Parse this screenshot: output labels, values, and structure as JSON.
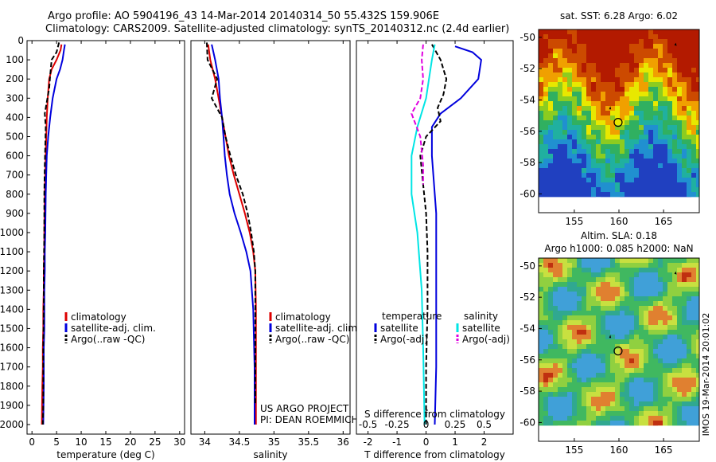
{
  "header": {
    "line1": "Argo profile: AO 5904196_43 14-Mar-2014 20140314_50 55.432S 159.906E",
    "line2": "Climatology: CARS2009. Satellite-adjusted climatology: synTS_20140312.nc (2.4d earlier)"
  },
  "colors": {
    "climatology": "#dd0000",
    "satellite": "#0000dd",
    "argo": "#000000",
    "salinity_sat": "#00e5e5",
    "salinity_argo": "#e000e0"
  },
  "chart_data": [
    {
      "type": "line",
      "id": "temperature",
      "xlabel": "temperature (deg C)",
      "ylabel": "",
      "xlim": [
        -1,
        31
      ],
      "ylim": [
        2050,
        0
      ],
      "xticks": [
        0,
        5,
        10,
        15,
        20,
        25,
        30
      ],
      "yticks": [
        0,
        100,
        200,
        300,
        400,
        500,
        600,
        700,
        800,
        900,
        1000,
        1100,
        1200,
        1300,
        1400,
        1500,
        1600,
        1700,
        1800,
        1900,
        2000
      ],
      "legend": [
        "climatology",
        "satellite-adj. clim.",
        "Argo(..raw -QC)"
      ],
      "series": [
        {
          "name": "climatology",
          "color": "#dd0000",
          "style": "solid",
          "x": [
            6.0,
            5.8,
            5.0,
            4.0,
            3.5,
            3.2,
            3.0,
            2.9,
            2.8,
            2.7,
            2.6,
            2.5,
            2.5,
            2.4,
            2.4,
            2.3,
            2.3,
            2.2,
            2.2,
            2.1,
            2.0
          ],
          "y": [
            20,
            50,
            100,
            150,
            200,
            300,
            400,
            500,
            600,
            700,
            800,
            1000,
            1100,
            1200,
            1300,
            1400,
            1500,
            1600,
            1700,
            1800,
            2000
          ]
        },
        {
          "name": "satellite-adj. clim.",
          "color": "#0000dd",
          "style": "solid",
          "x": [
            6.7,
            6.5,
            6.2,
            5.7,
            5.0,
            4.2,
            3.7,
            3.3,
            3.0,
            2.9,
            2.8,
            2.7,
            2.6,
            2.6,
            2.5,
            2.5,
            2.5,
            2.4,
            2.4,
            2.4,
            2.3
          ],
          "y": [
            20,
            50,
            100,
            150,
            200,
            300,
            400,
            500,
            600,
            700,
            800,
            1000,
            1100,
            1200,
            1300,
            1400,
            1500,
            1600,
            1700,
            1800,
            2000
          ]
        },
        {
          "name": "Argo(..raw -QC)",
          "color": "#000000",
          "style": "dashed",
          "x": [
            5.5,
            5.0,
            4.0,
            3.7,
            3.5,
            3.0,
            2.6,
            2.8,
            2.7,
            2.6,
            2.5,
            2.5,
            2.4,
            2.4,
            2.3,
            2.3,
            2.3,
            2.2
          ],
          "y": [
            10,
            60,
            100,
            180,
            250,
            320,
            380,
            450,
            550,
            650,
            800,
            1000,
            1200,
            1400,
            1600,
            1800,
            1900,
            2000
          ]
        }
      ]
    },
    {
      "type": "line",
      "id": "salinity",
      "xlabel": "salinity",
      "ylabel": "",
      "xlim": [
        33.8,
        36.1
      ],
      "ylim": [
        2050,
        0
      ],
      "xticks": [
        34,
        34.5,
        35,
        35.5,
        36
      ],
      "legend": [
        "climatology",
        "satellite-adj. clim.",
        "Argo(..raw -QC)"
      ],
      "annotation": [
        "US ARGO PROJECT",
        "PI: DEAN ROEMMICH"
      ],
      "series": [
        {
          "name": "climatology",
          "color": "#dd0000",
          "style": "solid",
          "x": [
            34.05,
            34.08,
            34.15,
            34.2,
            34.25,
            34.3,
            34.35,
            34.42,
            34.5,
            34.58,
            34.65,
            34.7,
            34.73,
            34.74,
            34.74,
            34.74
          ],
          "y": [
            20,
            100,
            200,
            300,
            400,
            500,
            600,
            700,
            800,
            900,
            1000,
            1100,
            1200,
            1400,
            1700,
            2000
          ]
        },
        {
          "name": "satellite-adj. clim.",
          "color": "#0000dd",
          "style": "solid",
          "x": [
            34.1,
            34.15,
            34.2,
            34.22,
            34.25,
            34.27,
            34.29,
            34.32,
            34.36,
            34.43,
            34.52,
            34.6,
            34.66,
            34.7,
            34.72,
            34.72
          ],
          "y": [
            20,
            100,
            200,
            300,
            400,
            500,
            600,
            700,
            800,
            900,
            1000,
            1100,
            1200,
            1400,
            1700,
            2000
          ]
        },
        {
          "name": "Argo(..raw -QC)",
          "color": "#000000",
          "style": "dashed",
          "x": [
            34.03,
            34.04,
            34.18,
            34.1,
            34.25,
            34.3,
            34.37,
            34.45,
            34.55,
            34.62,
            34.67,
            34.71,
            34.73,
            34.73,
            34.73
          ],
          "y": [
            10,
            100,
            200,
            300,
            400,
            500,
            600,
            700,
            800,
            900,
            1000,
            1100,
            1200,
            1500,
            1900
          ]
        }
      ]
    },
    {
      "type": "line",
      "id": "difference",
      "xlabel": "T difference from climatology",
      "xlabel_top": "S difference from climatology",
      "xlim": [
        -2.4,
        3.0
      ],
      "ylim": [
        2050,
        0
      ],
      "xticks": [
        -2,
        -1,
        0,
        1,
        2
      ],
      "xticks_top": [
        "-0.5",
        "-0.25",
        "0",
        "0.25",
        "0.5"
      ],
      "legend_left_title": "temperature",
      "legend_right_title": "salinity",
      "legend_left": [
        "satellite",
        "Argo(-adj)"
      ],
      "legend_right": [
        "satellite",
        "Argo(-adj)"
      ],
      "series": [
        {
          "name": "T satellite",
          "color": "#0000dd",
          "style": "solid",
          "x": [
            1.0,
            1.6,
            1.9,
            1.8,
            1.2,
            0.5,
            0.2,
            0.2,
            0.25,
            0.3,
            0.35,
            0.35,
            0.35,
            0.35,
            0.3
          ],
          "y": [
            30,
            60,
            100,
            200,
            300,
            380,
            450,
            600,
            700,
            800,
            900,
            1100,
            1400,
            1700,
            2000
          ]
        },
        {
          "name": "T Argo(-adj)",
          "color": "#000000",
          "style": "dashed",
          "x": [
            0.2,
            0.5,
            0.7,
            0.6,
            0.4,
            0.5,
            0.0,
            -0.2,
            -0.1,
            0.0,
            0.05,
            0.05,
            0.0,
            0.0
          ],
          "y": [
            20,
            100,
            200,
            280,
            350,
            420,
            500,
            600,
            750,
            900,
            1100,
            1400,
            1700,
            2000
          ]
        },
        {
          "name": "S satellite",
          "color": "#00e5e5",
          "style": "solid",
          "x": [
            0.3,
            0.2,
            0.1,
            0.0,
            -0.3,
            -0.5,
            -0.5,
            -0.3,
            -0.15,
            -0.1,
            -0.05
          ],
          "y": [
            20,
            100,
            200,
            300,
            450,
            600,
            800,
            1000,
            1300,
            1600,
            2000
          ]
        },
        {
          "name": "S Argo(-adj)",
          "color": "#e000e0",
          "style": "dashed",
          "x": [
            -0.1,
            -0.15,
            -0.1,
            -0.2,
            -0.5,
            -0.2,
            -0.1,
            -0.1
          ],
          "y": [
            20,
            100,
            200,
            300,
            380,
            500,
            650,
            750
          ]
        }
      ]
    },
    {
      "type": "heatmap",
      "id": "sst_map",
      "title": "sat. SST: 6.28 Argo: 6.02",
      "xticks": [
        "155",
        "160",
        "165"
      ],
      "yticks": [
        "-50",
        "-52",
        "-54",
        "-56",
        "-58",
        "-60"
      ],
      "xlim": [
        151,
        169
      ],
      "ylim": [
        -61.2,
        -49.5
      ],
      "profile_marker": {
        "lon": 159.906,
        "lat": -55.432
      }
    },
    {
      "type": "heatmap",
      "id": "sla_map",
      "title_line1": "Altim. SLA: 0.18",
      "title_line2": "Argo h1000: 0.085 h2000: NaN",
      "side_label": "IMOS 19-Mar-2014 20:01:02",
      "xticks": [
        "155",
        "160",
        "165"
      ],
      "yticks": [
        "-50",
        "-52",
        "-54",
        "-56",
        "-58",
        "-60"
      ],
      "xlim": [
        151,
        169
      ],
      "ylim": [
        -61.2,
        -49.5
      ],
      "profile_marker": {
        "lon": 159.906,
        "lat": -55.432
      }
    }
  ]
}
